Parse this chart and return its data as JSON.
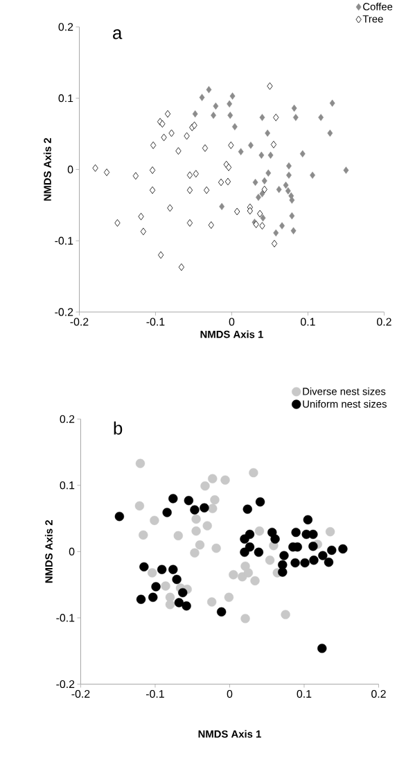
{
  "chart_data": [
    {
      "type": "scatter",
      "xlabel": "NMDS Axis 1",
      "ylabel": "NMDS Axis 2",
      "annotations": [
        "a"
      ],
      "xlim": [
        -0.2,
        0.2
      ],
      "ylim": [
        -0.2,
        0.2
      ],
      "xticks": [
        -0.2,
        -0.1,
        0,
        0.1,
        0.2
      ],
      "yticks": [
        -0.2,
        -0.1,
        0,
        0.1,
        0.2
      ],
      "legend": "top right",
      "marker": "diamond",
      "grid": false,
      "series": [
        {
          "name": "Coffee",
          "color": "#8c8c8c",
          "x": [
            -0.03,
            -0.039,
            -0.048,
            -0.021,
            -0.024,
            -0.003,
            -0.002,
            0.001,
            0.004,
            -0.013,
            0.082,
            0.084,
            0.04,
            0.047,
            0.117,
            0.132,
            0.129,
            0.025,
            0.012,
            0.039,
            0.051,
            0.093,
            0.075,
            0.075,
            0.048,
            0.106,
            0.15,
            0.031,
            0.043,
            0.062,
            0.071,
            0.074,
            0.078,
            0.079,
            0.035,
            0.04,
            0.079,
            0.041,
            0.066,
            0.058,
            0.081,
            0.03
          ],
          "values": [
            0.112,
            0.101,
            0.078,
            0.089,
            0.076,
            0.092,
            0.076,
            0.103,
            0.06,
            -0.052,
            0.086,
            0.073,
            0.073,
            0.051,
            0.073,
            0.093,
            0.051,
            0.034,
            0.025,
            0.02,
            0.02,
            0.022,
            0.005,
            -0.008,
            -0.005,
            -0.008,
            -0.001,
            -0.018,
            -0.016,
            -0.028,
            -0.022,
            -0.03,
            -0.037,
            -0.043,
            -0.039,
            -0.034,
            -0.065,
            -0.068,
            -0.079,
            -0.089,
            -0.086,
            -0.074
          ]
        },
        {
          "name": "Tree",
          "color": "#333333",
          "x": [
            -0.179,
            -0.164,
            -0.126,
            -0.104,
            -0.104,
            -0.103,
            -0.094,
            -0.091,
            -0.084,
            -0.089,
            -0.079,
            -0.07,
            -0.059,
            -0.052,
            -0.049,
            -0.035,
            -0.055,
            -0.047,
            -0.055,
            -0.033,
            -0.014,
            -0.005,
            -0.007,
            -0.004,
            -0.001,
            -0.081,
            -0.119,
            -0.116,
            -0.15,
            -0.055,
            -0.027,
            -0.093,
            -0.066,
            0.05,
            0.058,
            0.055,
            0.043,
            0.007,
            0.024,
            0.024,
            0.037,
            0.032,
            0.04,
            0.056
          ],
          "values": [
            0.002,
            -0.004,
            -0.009,
            -0.001,
            -0.029,
            0.034,
            0.067,
            0.064,
            0.078,
            0.045,
            0.051,
            0.026,
            0.047,
            0.059,
            0.062,
            0.03,
            -0.008,
            -0.006,
            -0.029,
            -0.029,
            -0.018,
            -0.017,
            0.007,
            0.003,
            0.034,
            -0.054,
            -0.066,
            -0.087,
            -0.075,
            -0.075,
            -0.078,
            -0.12,
            -0.137,
            0.117,
            0.073,
            0.035,
            -0.028,
            -0.059,
            -0.053,
            -0.058,
            -0.062,
            -0.077,
            -0.079,
            -0.104
          ]
        }
      ]
    },
    {
      "type": "scatter",
      "xlabel": "NMDS Axis 1",
      "ylabel": "NMDS Axis 2",
      "annotations": [
        "b"
      ],
      "xlim": [
        -0.2,
        0.2
      ],
      "ylim": [
        -0.2,
        0.2
      ],
      "xticks": [
        -0.2,
        -0.1,
        0,
        0.1,
        0.2
      ],
      "yticks": [
        -0.2,
        -0.1,
        0,
        0.1,
        0.2
      ],
      "legend": "top right",
      "marker": "circle",
      "grid": false,
      "series": [
        {
          "name": "Diverse nest sizes",
          "color": "#c8c8c8",
          "x": [
            -0.12,
            -0.121,
            -0.101,
            -0.116,
            -0.069,
            -0.033,
            -0.023,
            -0.006,
            -0.02,
            -0.023,
            -0.045,
            -0.045,
            -0.03,
            -0.04,
            -0.047,
            -0.018,
            -0.104,
            -0.086,
            -0.08,
            -0.08,
            -0.057,
            -0.066,
            -0.024,
            0.032,
            0.04,
            0.135,
            0.059,
            0.118,
            0.054,
            0.021,
            0.005,
            0.017,
            0.025,
            0.034,
            0.064,
            -0.001,
            0.021,
            0.075
          ],
          "values": [
            0.133,
            0.069,
            0.047,
            0.025,
            0.024,
            0.099,
            0.11,
            0.108,
            0.078,
            0.065,
            0.049,
            0.031,
            0.039,
            0.01,
            -0.002,
            0.005,
            -0.032,
            -0.052,
            -0.069,
            -0.08,
            -0.057,
            -0.055,
            -0.076,
            0.119,
            0.031,
            0.03,
            0.009,
            0.011,
            -0.013,
            -0.022,
            -0.035,
            -0.038,
            -0.032,
            -0.044,
            -0.032,
            -0.069,
            -0.101,
            -0.095
          ]
        },
        {
          "name": "Uniform nest sizes",
          "color": "#000000",
          "x": [
            -0.148,
            -0.076,
            -0.084,
            -0.055,
            -0.047,
            -0.034,
            -0.115,
            -0.091,
            -0.076,
            -0.071,
            -0.099,
            -0.119,
            -0.103,
            -0.063,
            -0.068,
            -0.058,
            -0.011,
            0.024,
            0.041,
            0.105,
            0.02,
            0.027,
            0.02,
            0.027,
            0.039,
            0.057,
            0.061,
            0.089,
            0.103,
            0.112,
            0.085,
            0.091,
            0.112,
            0.073,
            0.071,
            0.071,
            0.088,
            0.101,
            0.113,
            0.125,
            0.133,
            0.137,
            0.152,
            0.124
          ],
          "values": [
            0.053,
            0.08,
            0.059,
            0.077,
            0.063,
            0.066,
            -0.023,
            -0.027,
            -0.027,
            -0.042,
            -0.053,
            -0.072,
            -0.069,
            -0.062,
            -0.077,
            -0.082,
            -0.091,
            0.064,
            0.075,
            0.048,
            0.019,
            0.026,
            -0.001,
            0.007,
            -0.001,
            0.029,
            0.019,
            0.029,
            0.026,
            0.026,
            0.007,
            0.007,
            0.008,
            -0.006,
            -0.02,
            -0.031,
            -0.017,
            -0.017,
            -0.013,
            -0.006,
            -0.016,
            0.002,
            0.004,
            -0.146
          ]
        }
      ]
    }
  ]
}
